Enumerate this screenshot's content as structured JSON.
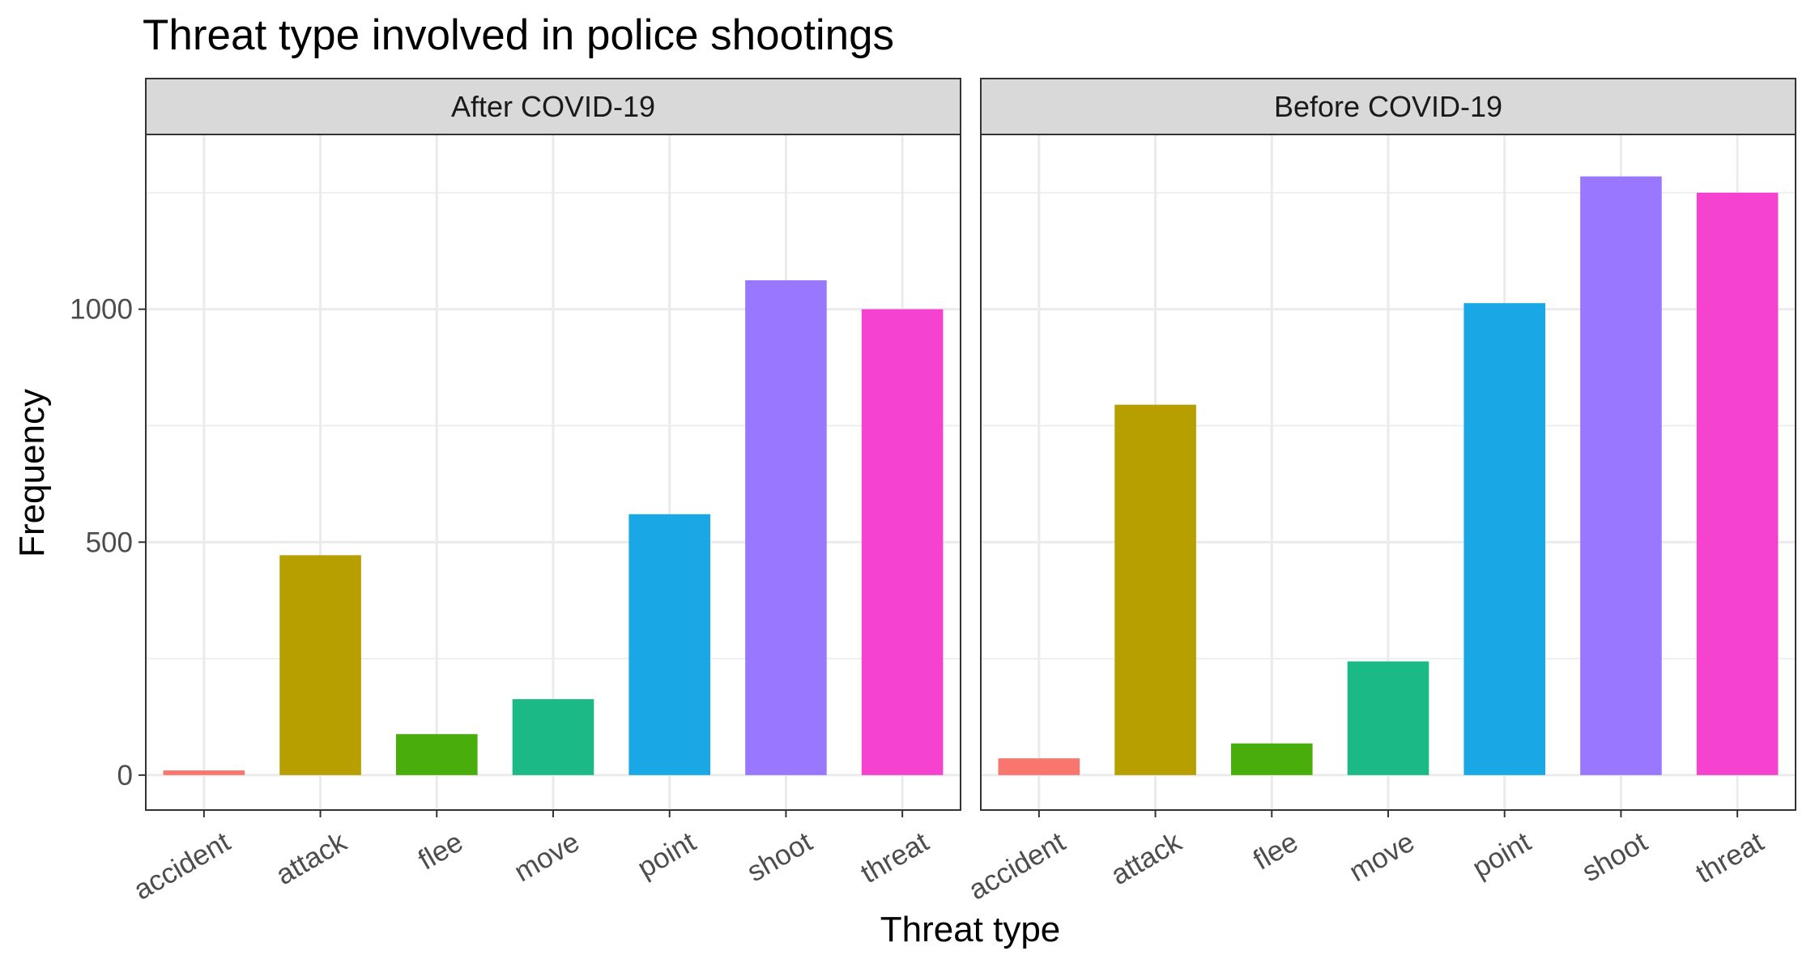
{
  "chart_data": {
    "type": "bar",
    "title": "Threat type involved in police shootings",
    "xlabel": "Threat type",
    "ylabel": "Frequency",
    "categories": [
      "accident",
      "attack",
      "flee",
      "move",
      "point",
      "shoot",
      "threat"
    ],
    "ylim": [
      -75,
      1375
    ],
    "yticks": [
      0,
      500,
      1000
    ],
    "grid": true,
    "legend": "none",
    "colors": [
      "#F8766D",
      "#B79F00",
      "#49AD0B",
      "#1BB986",
      "#19A8E5",
      "#9A77FF",
      "#F543D0"
    ],
    "panels": [
      {
        "name": "After COVID-19",
        "values": [
          10,
          472,
          88,
          163,
          560,
          1062,
          1000
        ]
      },
      {
        "name": "Before COVID-19",
        "values": [
          36,
          795,
          68,
          244,
          1013,
          1285,
          1250
        ]
      }
    ]
  }
}
